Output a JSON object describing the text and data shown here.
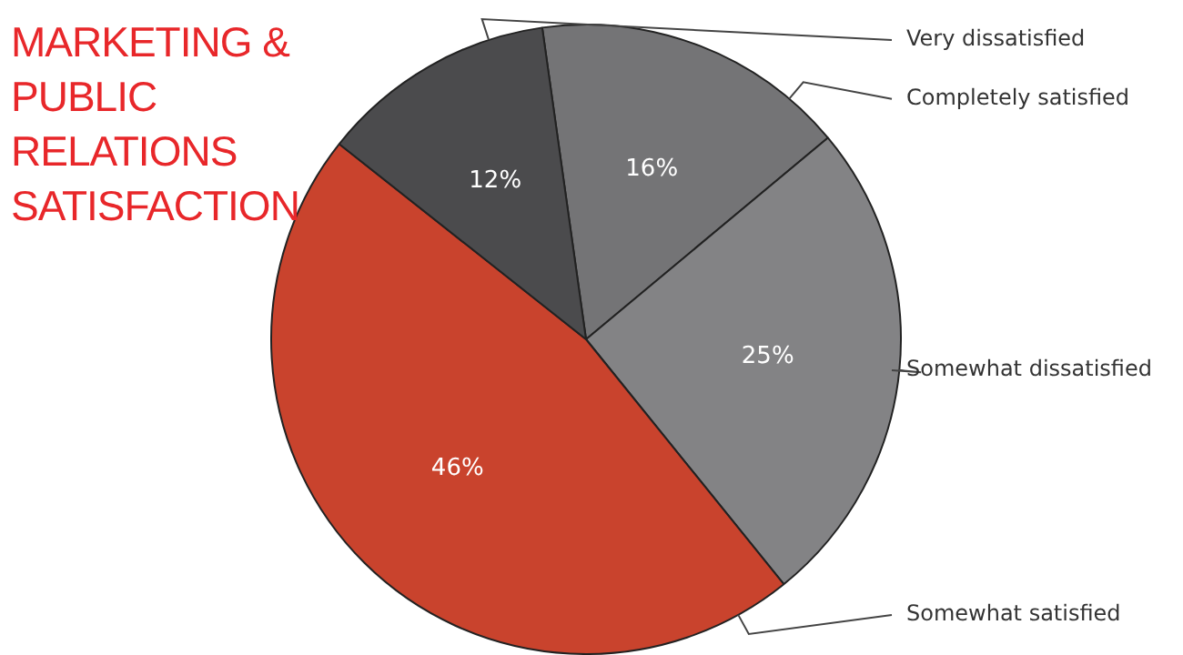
{
  "chart_data": {
    "type": "pie",
    "title": "MARKETING & PUBLIC RELATIONS SATISFACTION",
    "categories": [
      "Completely satisfied",
      "Somewhat dissatisfied",
      "Somewhat satisfied",
      "Very dissatisfied"
    ],
    "values": [
      16,
      25,
      46,
      12
    ],
    "value_labels": [
      "16%",
      "25%",
      "46%",
      "12%"
    ],
    "colors": [
      "#747476",
      "#838385",
      "#c9432d",
      "#4b4b4d"
    ],
    "legend": false
  }
}
